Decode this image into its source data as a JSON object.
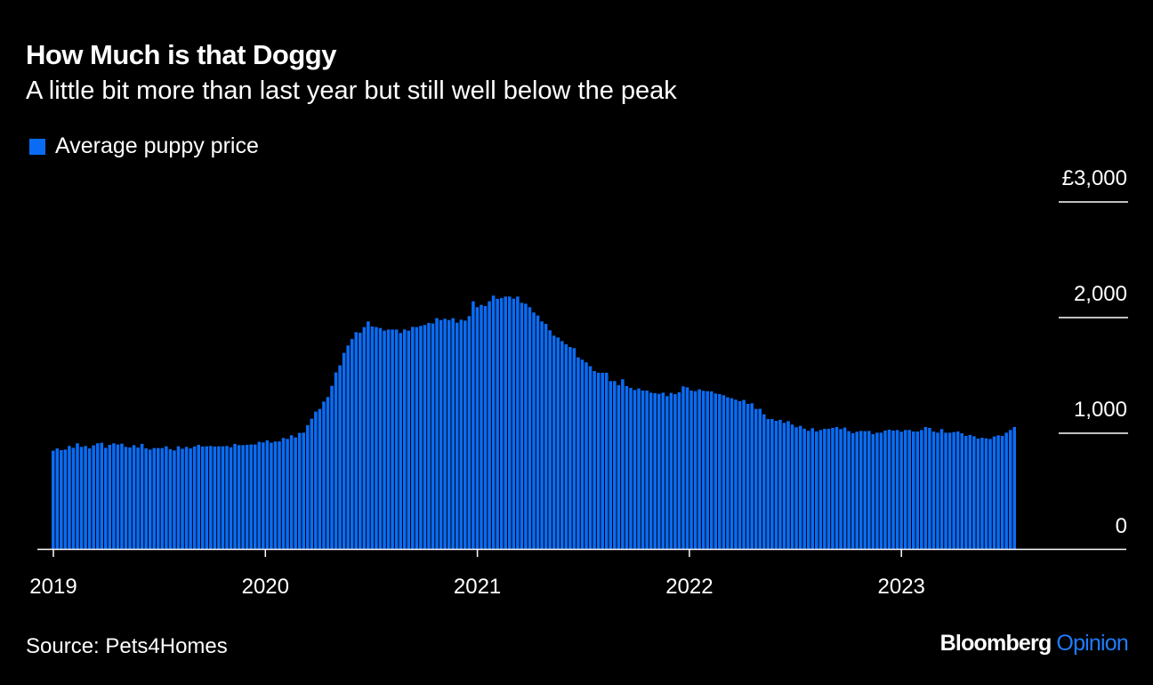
{
  "header": {
    "title": "How Much is that Doggy",
    "subtitle": "A little bit more than last year but still well below the peak"
  },
  "footer": {
    "source": "Source: Pets4Homes",
    "brand": "Bloomberg",
    "brand_suffix": "Opinion"
  },
  "colors": {
    "bar": "#0a6cf5",
    "brand_accent": "#1f7cff",
    "axis": "#ffffff"
  },
  "chart_data": {
    "type": "bar",
    "title": "How Much is that Doggy",
    "subtitle": "A little bit more than last year but still well below the peak",
    "legend": [
      {
        "label": "Average puppy price",
        "color": "#0a6cf5"
      }
    ],
    "legend_position": "top-left",
    "xlabel": "",
    "ylabel": "",
    "frequency": "weekly",
    "start": "2019-01",
    "x_ticks": [
      "2019",
      "2020",
      "2021",
      "2022",
      "2023"
    ],
    "y_ticks": [
      {
        "value": 0,
        "label": "0"
      },
      {
        "value": 1000,
        "label": "1,000"
      },
      {
        "value": 2000,
        "label": "2,000"
      },
      {
        "value": 3000,
        "label": "£3,000"
      }
    ],
    "ylim": [
      0,
      3000
    ],
    "values": [
      849,
      869,
      854,
      859,
      890,
      874,
      913,
      882,
      890,
      869,
      895,
      913,
      918,
      874,
      900,
      913,
      903,
      910,
      882,
      877,
      897,
      877,
      908,
      869,
      859,
      872,
      872,
      872,
      887,
      862,
      851,
      887,
      866,
      882,
      869,
      885,
      900,
      885,
      887,
      890,
      885,
      887,
      887,
      890,
      879,
      908,
      897,
      897,
      900,
      903,
      903,
      926,
      921,
      938,
      918,
      929,
      929,
      959,
      951,
      982,
      964,
      1003,
      1005,
      1069,
      1126,
      1187,
      1210,
      1274,
      1313,
      1410,
      1526,
      1587,
      1695,
      1759,
      1815,
      1874,
      1869,
      1918,
      1967,
      1923,
      1918,
      1910,
      1887,
      1897,
      1897,
      1897,
      1867,
      1897,
      1887,
      1920,
      1918,
      1928,
      1936,
      1954,
      1949,
      1995,
      1979,
      1990,
      1979,
      1995,
      1956,
      1982,
      1974,
      2013,
      2141,
      2090,
      2110,
      2100,
      2141,
      2190,
      2162,
      2169,
      2182,
      2182,
      2164,
      2182,
      2128,
      2120,
      2090,
      2044,
      2018,
      1967,
      1946,
      1890,
      1844,
      1828,
      1797,
      1769,
      1746,
      1736,
      1656,
      1636,
      1613,
      1580,
      1538,
      1523,
      1523,
      1523,
      1451,
      1451,
      1415,
      1467,
      1408,
      1392,
      1374,
      1387,
      1369,
      1369,
      1351,
      1346,
      1341,
      1351,
      1321,
      1349,
      1338,
      1354,
      1405,
      1397,
      1369,
      1364,
      1380,
      1367,
      1364,
      1362,
      1344,
      1339,
      1329,
      1311,
      1303,
      1290,
      1277,
      1288,
      1254,
      1259,
      1211,
      1211,
      1164,
      1123,
      1123,
      1108,
      1116,
      1090,
      1105,
      1075,
      1052,
      1064,
      1039,
      1021,
      1044,
      1015,
      1028,
      1038,
      1038,
      1046,
      1054,
      1036,
      1049,
      1018,
      1000,
      1013,
      1020,
      1018,
      1020,
      992,
      1005,
      1005,
      1023,
      1031,
      1023,
      1028,
      1013,
      1028,
      1028,
      1015,
      1015,
      1028,
      1054,
      1046,
      1015,
      1005,
      1036,
      1005,
      1005,
      1010,
      1015,
      1000,
      977,
      985,
      974,
      954,
      961,
      956,
      951,
      972,
      982,
      977,
      1005,
      1028,
      1054
    ]
  }
}
